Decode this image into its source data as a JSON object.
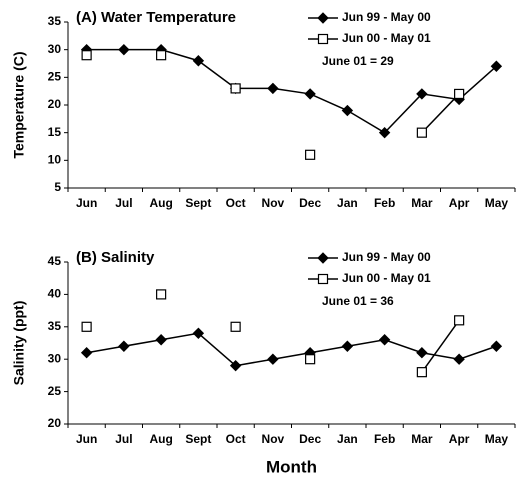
{
  "chart_data": [
    {
      "type": "line",
      "title": "(A) Water Temperature",
      "y_label": "Temperature (C)",
      "categories": [
        "Jun",
        "Jul",
        "Aug",
        "Sept",
        "Oct",
        "Nov",
        "Dec",
        "Jan",
        "Feb",
        "Mar",
        "Apr",
        "May"
      ],
      "series": [
        {
          "name": "Jun 99 - May 00",
          "color": "#000000",
          "marker": "diamond",
          "marker_fill": "#000000",
          "values": [
            30,
            30,
            30,
            28,
            23,
            23,
            22,
            19,
            15,
            22,
            21,
            27
          ]
        },
        {
          "name": "Jun 00 - May 01",
          "color": "#000000",
          "marker": "square",
          "marker_fill": "#ffffff",
          "values": [
            29,
            null,
            29,
            null,
            23,
            null,
            11,
            null,
            null,
            15,
            22,
            null
          ]
        }
      ],
      "annotation": "June 01 = 29",
      "ylim": [
        5,
        35
      ],
      "yticks": [
        5,
        10,
        15,
        20,
        25,
        30,
        35
      ],
      "legend": "upper right",
      "grid": false
    },
    {
      "type": "line",
      "title": "(B) Salinity",
      "y_label": "Salinity (ppt)",
      "x_label": "Month",
      "categories": [
        "Jun",
        "Jul",
        "Aug",
        "Sept",
        "Oct",
        "Nov",
        "Dec",
        "Jan",
        "Feb",
        "Mar",
        "Apr",
        "May"
      ],
      "series": [
        {
          "name": "Jun 99 - May 00",
          "color": "#000000",
          "marker": "diamond",
          "marker_fill": "#000000",
          "values": [
            31,
            32,
            33,
            34,
            29,
            30,
            31,
            32,
            33,
            31,
            30,
            32
          ]
        },
        {
          "name": "Jun 00 - May 01",
          "color": "#000000",
          "marker": "square",
          "marker_fill": "#ffffff",
          "values": [
            35,
            null,
            40,
            null,
            35,
            null,
            30,
            null,
            null,
            28,
            36,
            null
          ]
        }
      ],
      "annotation": "June 01 = 36",
      "ylim": [
        20,
        45
      ],
      "yticks": [
        20,
        25,
        30,
        35,
        40,
        45
      ],
      "legend": "upper right",
      "grid": false
    }
  ]
}
